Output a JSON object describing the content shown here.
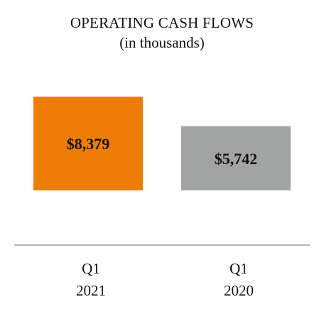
{
  "chart_data": {
    "type": "bar",
    "title": "OPERATING CASH FLOWS",
    "subtitle": "(in thousands)",
    "categories": [
      [
        "Q1",
        "2021"
      ],
      [
        "Q1",
        "2020"
      ]
    ],
    "values": [
      8379,
      5742
    ],
    "value_labels": [
      "$8,379",
      "$5,742"
    ],
    "colors": [
      "#ee7d05",
      "#a2a4a3"
    ],
    "axis_color": "#9b9b9b",
    "xlabel": "",
    "ylabel": "",
    "ylim": [
      0,
      8379
    ],
    "grid": false,
    "legend": "none"
  }
}
